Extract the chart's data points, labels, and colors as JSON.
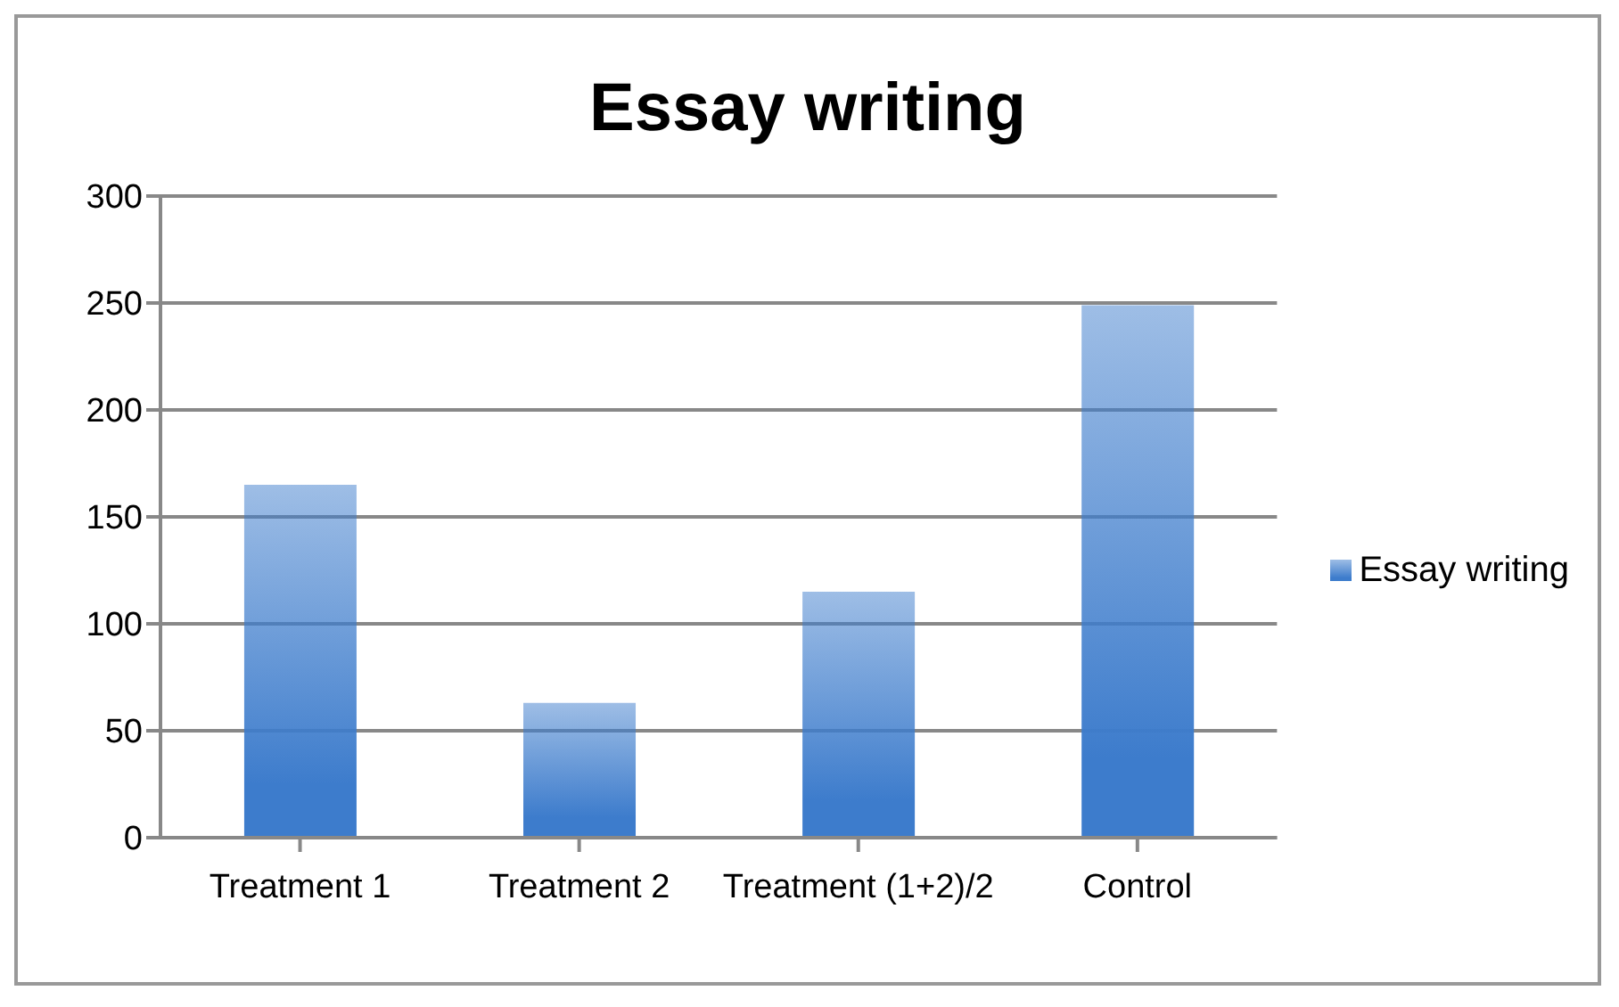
{
  "chart_data": {
    "type": "bar",
    "title": "Essay writing",
    "categories": [
      "Treatment 1",
      "Treatment 2",
      "Treatment (1+2)/2",
      "Control"
    ],
    "series": [
      {
        "name": "Essay writing",
        "color": "#3d7ccc",
        "values": [
          165,
          63,
          115,
          249
        ]
      }
    ],
    "ylim": [
      0,
      300
    ],
    "yticks": [
      0,
      50,
      100,
      150,
      200,
      250,
      300
    ],
    "grid": "y",
    "legend": "right"
  }
}
